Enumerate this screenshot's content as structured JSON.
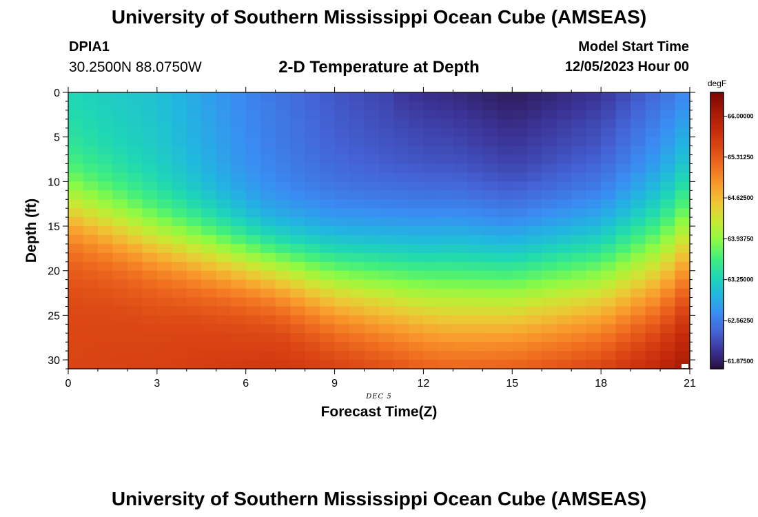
{
  "header": {
    "title": "University of Southern Mississippi Ocean Cube (AMSEAS)",
    "station_name": "DPIA1",
    "station_coords": "30.2500N  88.0750W",
    "subtitle": "2-D Temperature at Depth",
    "model_start_label": "Model Start Time",
    "model_start_value": "12/05/2023 Hour 00"
  },
  "footer": {
    "title": "University of Southern Mississippi Ocean Cube (AMSEAS)"
  },
  "chart_data": {
    "type": "heatmap",
    "title": "2-D Temperature at Depth",
    "xlabel": "Forecast Time(Z)",
    "ylabel": "Depth (ft)",
    "date_label": "DEC 5",
    "x_ticks": [
      0,
      3,
      6,
      9,
      12,
      15,
      18,
      21
    ],
    "xlim": [
      0,
      21
    ],
    "y_ticks": [
      0,
      5,
      10,
      15,
      20,
      25,
      30
    ],
    "ylim": [
      0,
      31
    ],
    "colorbar": {
      "unit": "degF",
      "ticks": [
        "66.00000",
        "65.31250",
        "64.62500",
        "63.93750",
        "63.25000",
        "62.56250",
        "61.87500"
      ],
      "range": [
        61.75,
        66.4
      ],
      "colors": [
        "#2a0f3e",
        "#3b3497",
        "#4463d6",
        "#3a8cf3",
        "#21b6e0",
        "#1fd7b4",
        "#43ef7c",
        "#8dfa44",
        "#c7ea33",
        "#eec635",
        "#f99a2c",
        "#f06e20",
        "#dc4715",
        "#c42a0a",
        "#a31806",
        "#7a0403"
      ]
    },
    "thermocline_depth_ft": {
      "hours": [
        0,
        3,
        6,
        9,
        12,
        15,
        18,
        20,
        21
      ],
      "depth": [
        13,
        16.5,
        18.8,
        21,
        22,
        22,
        21.3,
        19.5,
        17
      ]
    },
    "surface_temperature_degF": {
      "hours": [
        0,
        3,
        6,
        9,
        12,
        15,
        18,
        21
      ],
      "values": [
        63.3,
        63.1,
        62.65,
        62.3,
        62.05,
        61.85,
        62.05,
        62.6
      ]
    },
    "bottom_temperature_degF": {
      "hours": [
        0,
        3,
        6,
        9,
        12,
        15,
        18,
        21
      ],
      "values": [
        65.5,
        65.55,
        65.65,
        65.75,
        65.85,
        65.95,
        66.1,
        66.35
      ]
    }
  }
}
